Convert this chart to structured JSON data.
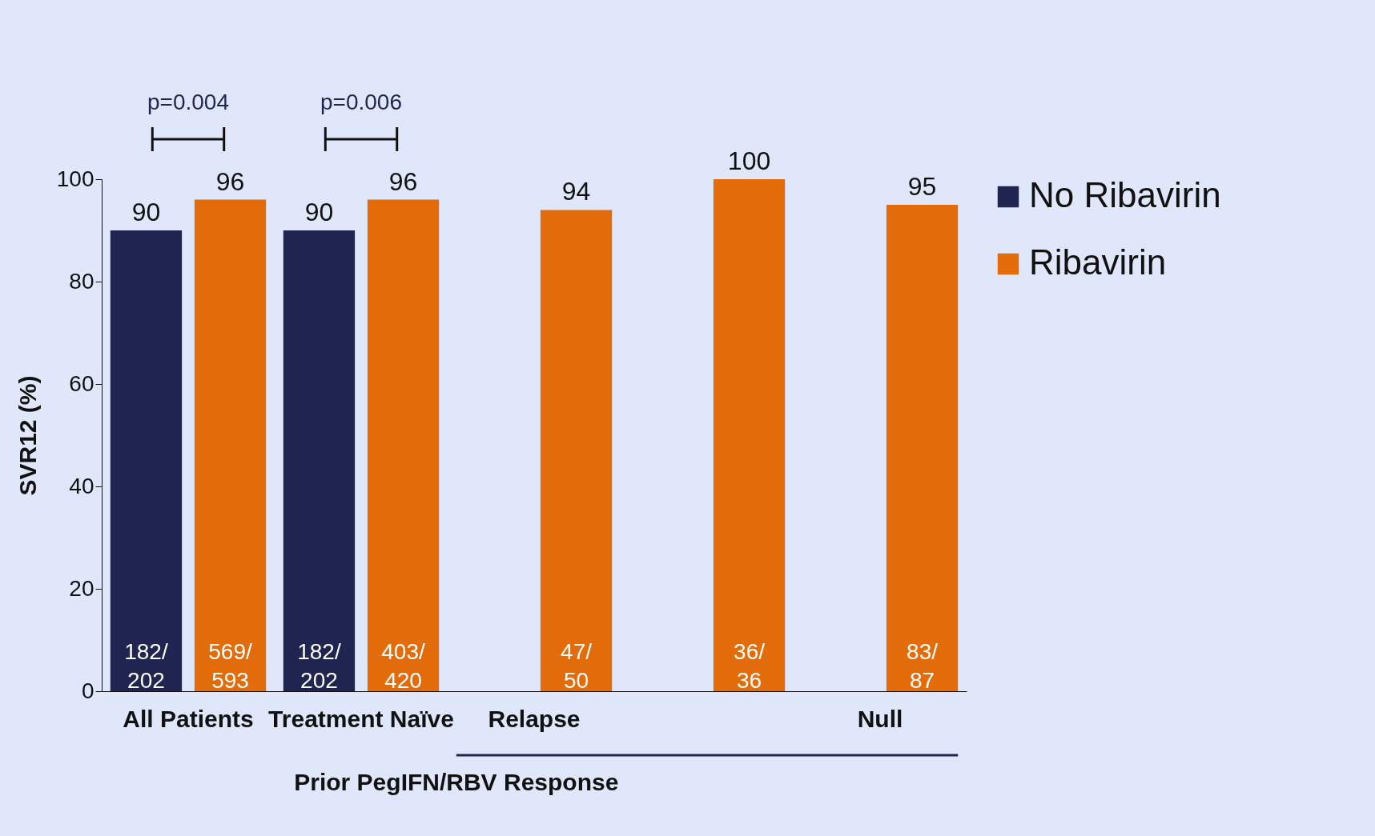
{
  "chart_data": {
    "type": "bar",
    "ylabel": "SVR12 (%)",
    "categories": [
      "All Patients",
      "Treatment Naïve",
      "Relapse",
      null,
      "Null"
    ],
    "series": [
      {
        "name": "No Ribavirin",
        "color": "#1f2550",
        "values": [
          90,
          90,
          null,
          null,
          null
        ]
      },
      {
        "name": "Ribavirin",
        "color": "#e36c0a",
        "values": [
          96,
          96,
          94,
          100,
          95
        ]
      }
    ],
    "ylim": [
      0,
      100
    ],
    "yticks": [
      0,
      20,
      40,
      60,
      80,
      100
    ],
    "grid": false,
    "legend": "top right",
    "data_labels": true,
    "annotations": [
      "p=0.004",
      "p=0.006",
      "182/202",
      "569/593",
      "182/202",
      "403/420",
      "47/50",
      "36/36",
      "83/87",
      "Prior PegIFN/RBV Response"
    ]
  }
}
